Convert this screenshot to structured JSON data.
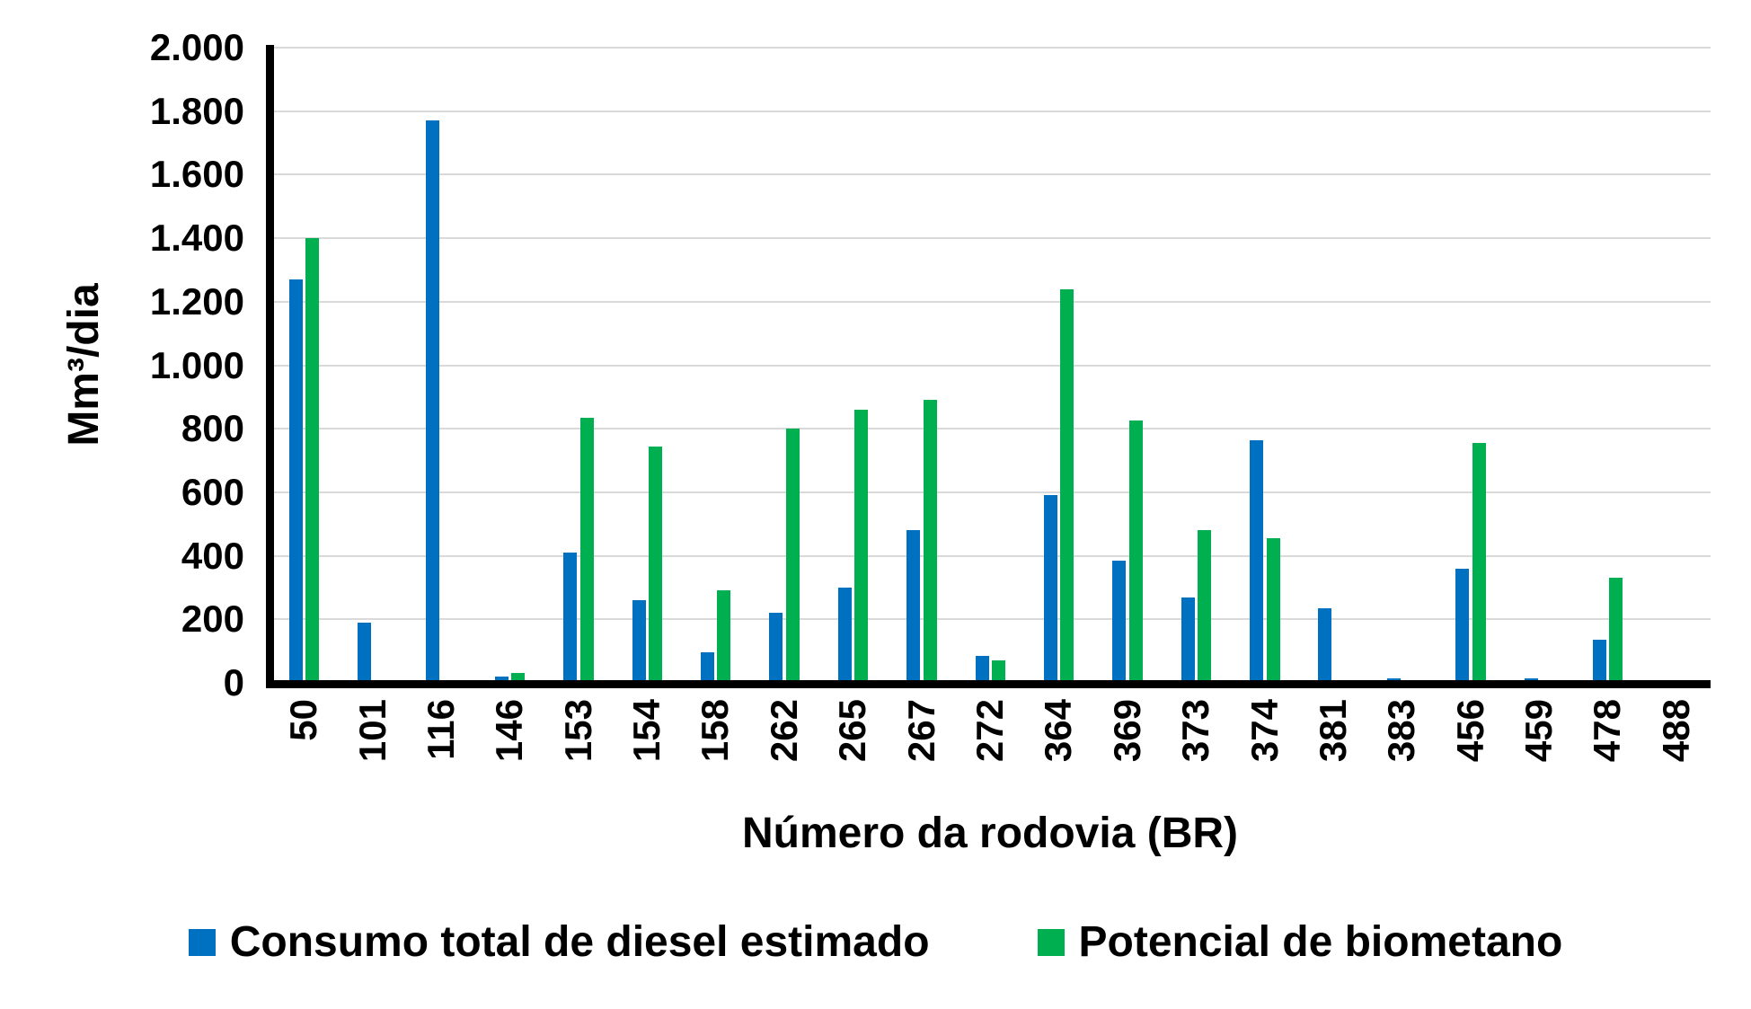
{
  "chart_data": {
    "type": "bar",
    "title": "",
    "xlabel": "Número da rodovia (BR)",
    "ylabel": "Mm³/dia",
    "categories": [
      "50",
      "101",
      "116",
      "146",
      "153",
      "154",
      "158",
      "262",
      "265",
      "267",
      "272",
      "364",
      "369",
      "373",
      "374",
      "381",
      "383",
      "456",
      "459",
      "478",
      "488"
    ],
    "series": [
      {
        "name": "Consumo total de diesel estimado",
        "color": "#0070C0",
        "values": [
          1270,
          190,
          1770,
          20,
          410,
          260,
          95,
          220,
          300,
          480,
          85,
          590,
          385,
          270,
          765,
          235,
          15,
          360,
          15,
          135,
          0
        ]
      },
      {
        "name": "Potencial de biometano",
        "color": "#00B050",
        "values": [
          1400,
          0,
          0,
          30,
          835,
          745,
          290,
          800,
          860,
          890,
          70,
          1240,
          825,
          480,
          455,
          0,
          0,
          755,
          0,
          330,
          0
        ]
      }
    ],
    "ylim": [
      0,
      2000
    ],
    "ytick_step": 200,
    "ytick_labels": [
      "0",
      "200",
      "400",
      "600",
      "800",
      "1.000",
      "1.200",
      "1.400",
      "1.600",
      "1.800",
      "2.000"
    ],
    "grid": true,
    "legend_position": "bottom",
    "colors": {
      "axis": "#000000",
      "gridline": "#D9D9D9",
      "text": "#000000",
      "background": "#FFFFFF"
    }
  }
}
